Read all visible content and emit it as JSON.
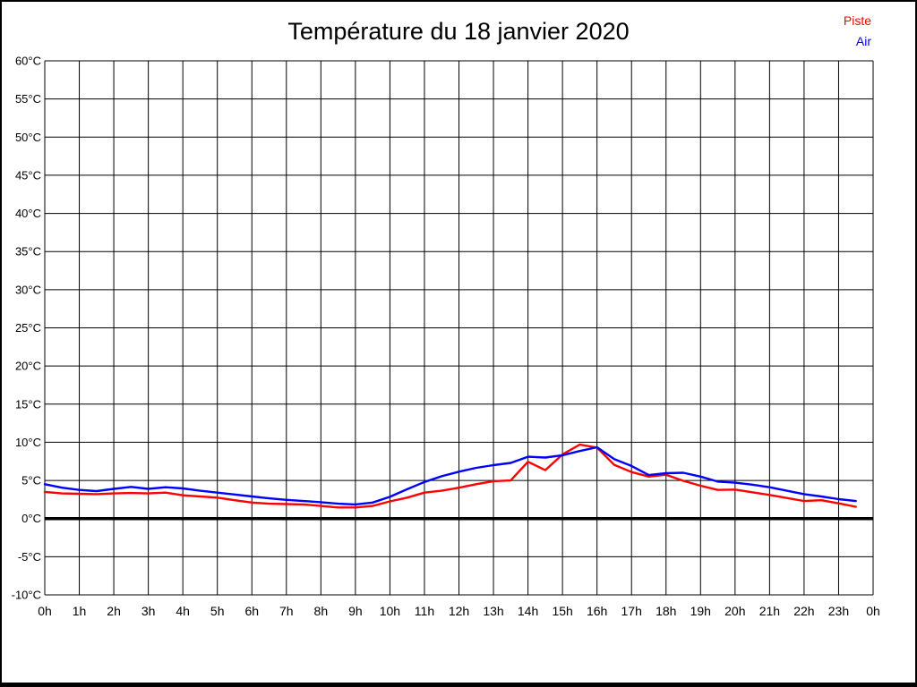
{
  "title": "Température du 18 janvier 2020",
  "legend": {
    "items": [
      {
        "label": "Piste",
        "color": "#ff0000"
      },
      {
        "label": "Air",
        "color": "#0000ff"
      }
    ]
  },
  "chart_data": {
    "type": "line",
    "title": "Température du 18 janvier 2020",
    "xlabel": "",
    "ylabel": "",
    "xlim": [
      0,
      24
    ],
    "ylim": [
      -10,
      60
    ],
    "grid": true,
    "background": "#ffffff",
    "axis_color": "#000000",
    "zero_line": {
      "value": 0,
      "bold": true
    },
    "legend_position": "top-right",
    "x_tick_positions": [
      0,
      1,
      2,
      3,
      4,
      5,
      6,
      7,
      8,
      9,
      10,
      11,
      12,
      13,
      14,
      15,
      16,
      17,
      18,
      19,
      20,
      21,
      22,
      23,
      24
    ],
    "x_tick_labels": [
      "0h",
      "1h",
      "2h",
      "3h",
      "4h",
      "5h",
      "6h",
      "7h",
      "8h",
      "9h",
      "10h",
      "11h",
      "12h",
      "13h",
      "14h",
      "15h",
      "16h",
      "17h",
      "18h",
      "19h",
      "20h",
      "21h",
      "22h",
      "23h",
      "0h"
    ],
    "y_tick_values": [
      60,
      55,
      50,
      45,
      40,
      35,
      30,
      25,
      20,
      15,
      10,
      5,
      0,
      -5,
      -10
    ],
    "y_tick_labels": [
      "60°C",
      "55°C",
      "50°C",
      "45°C",
      "40°C",
      "35°C",
      "30°C",
      "25°C",
      "20°C",
      "15°C",
      "10°C",
      "5°C",
      "0°C",
      "-5°C",
      "-10°C"
    ],
    "x": [
      0,
      0.5,
      1,
      1.5,
      2,
      2.5,
      3,
      3.5,
      4,
      4.5,
      5,
      5.5,
      6,
      6.5,
      7,
      7.5,
      8,
      8.5,
      9,
      9.5,
      10,
      10.5,
      11,
      11.5,
      12,
      12.5,
      13,
      13.5,
      14,
      14.5,
      15,
      15.5,
      16,
      16.5,
      17,
      17.5,
      18,
      18.5,
      19,
      19.5,
      20,
      20.5,
      21,
      21.5,
      22,
      22.5,
      23,
      23.5
    ],
    "series": [
      {
        "name": "Piste",
        "color": "#ff0000",
        "values": [
          3.5,
          3.3,
          3.25,
          3.2,
          3.3,
          3.35,
          3.3,
          3.4,
          3.05,
          2.9,
          2.75,
          2.4,
          2.1,
          1.95,
          1.9,
          1.85,
          1.65,
          1.45,
          1.45,
          1.65,
          2.25,
          2.75,
          3.4,
          3.65,
          4.05,
          4.5,
          4.9,
          5.0,
          7.45,
          6.35,
          8.4,
          9.7,
          9.3,
          7.05,
          6.1,
          5.5,
          5.75,
          4.95,
          4.3,
          3.75,
          3.8,
          3.45,
          3.1,
          2.7,
          2.3,
          2.4,
          2.0,
          1.55
        ]
      },
      {
        "name": "Air",
        "color": "#0000ff",
        "values": [
          4.5,
          4.05,
          3.75,
          3.6,
          3.9,
          4.15,
          3.9,
          4.1,
          3.95,
          3.65,
          3.4,
          3.15,
          2.9,
          2.65,
          2.45,
          2.3,
          2.15,
          1.95,
          1.85,
          2.1,
          2.85,
          3.85,
          4.8,
          5.55,
          6.15,
          6.65,
          7.0,
          7.3,
          8.1,
          8.0,
          8.3,
          8.85,
          9.35,
          7.8,
          6.9,
          5.7,
          5.95,
          6.0,
          5.5,
          4.85,
          4.7,
          4.45,
          4.1,
          3.65,
          3.2,
          2.9,
          2.55,
          2.3
        ]
      }
    ]
  }
}
